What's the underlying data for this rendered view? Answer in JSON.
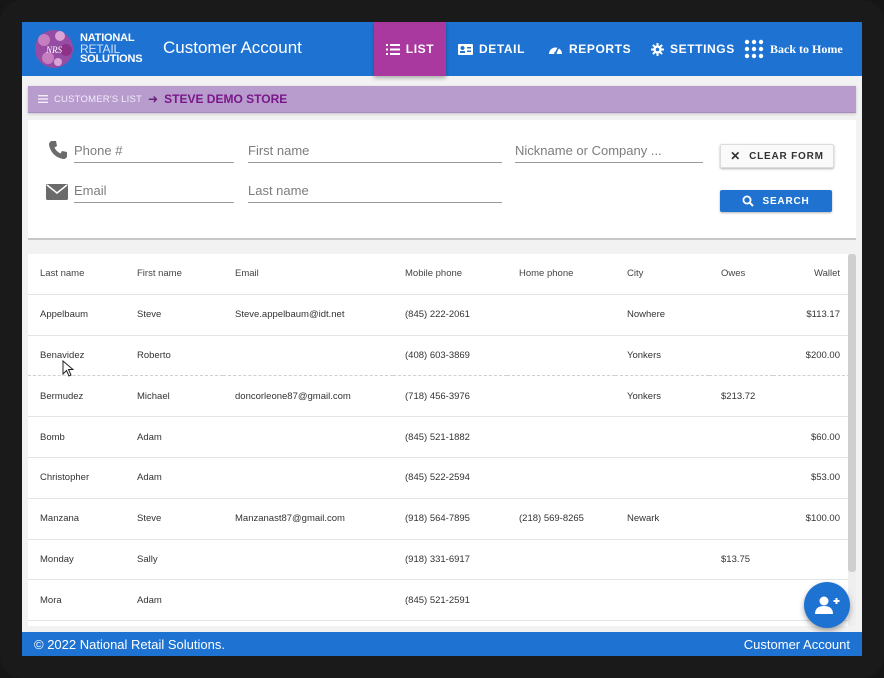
{
  "header": {
    "logo_line1": "NATIONAL",
    "logo_line2": "RETAIL",
    "logo_line3": "SOLUTIONS",
    "logo_badge": "NRS",
    "app_title": "Customer Account",
    "tabs": [
      {
        "label": "LIST",
        "icon": "list-icon",
        "active": true
      },
      {
        "label": "DETAIL",
        "icon": "id-card-icon",
        "active": false
      },
      {
        "label": "REPORTS",
        "icon": "speedometer-icon",
        "active": false
      },
      {
        "label": "SETTINGS",
        "icon": "gear-icon",
        "active": false
      }
    ],
    "back_home": "Back to Home"
  },
  "breadcrumb": {
    "parent": "CUSTOMER'S LIST",
    "current": "STEVE DEMO STORE"
  },
  "form": {
    "phone": {
      "placeholder": "Phone #",
      "value": ""
    },
    "first_name": {
      "placeholder": "First name",
      "value": ""
    },
    "nickname": {
      "placeholder": "Nickname or Company ...",
      "value": ""
    },
    "email": {
      "placeholder": "Email",
      "value": ""
    },
    "last_name": {
      "placeholder": "Last name",
      "value": ""
    },
    "clear_label": "CLEAR FORM",
    "search_label": "SEARCH"
  },
  "table": {
    "columns": [
      "Last name",
      "First name",
      "Email",
      "Mobile phone",
      "Home phone",
      "City",
      "Owes",
      "Wallet"
    ],
    "rows": [
      [
        "Appelbaum",
        "Steve",
        "Steve.appelbaum@idt.net",
        "(845) 222-2061",
        "",
        "Nowhere",
        "",
        "$113.17"
      ],
      [
        "Benavidez",
        "Roberto",
        "",
        "(408) 603-3869",
        "",
        "Yonkers",
        "",
        "$200.00"
      ],
      [
        "Bermudez",
        "Michael",
        "doncorleone87@gmail.com",
        "(718) 456-3976",
        "",
        "Yonkers",
        "$213.72",
        ""
      ],
      [
        "Bomb",
        "Adam",
        "",
        "(845) 521-1882",
        "",
        "",
        "",
        "$60.00"
      ],
      [
        "Christopher",
        "Adam",
        "",
        "(845) 522-2594",
        "",
        "",
        "",
        "$53.00"
      ],
      [
        "Manzana",
        "Steve",
        "Manzanast87@gmail.com",
        "(918) 564-7895",
        "(218) 569-8265",
        "Newark",
        "",
        "$100.00"
      ],
      [
        "Monday",
        "Sally",
        "",
        "(918) 331-6917",
        "",
        "",
        "$13.75",
        ""
      ],
      [
        "Mora",
        "Adam",
        "",
        "(845) 521-2591",
        "",
        "",
        "",
        ""
      ]
    ]
  },
  "footer": {
    "copyright": "© 2022 National Retail Solutions.",
    "right": "Customer Account"
  },
  "colors": {
    "primary": "#1e73d2",
    "active_tab": "#a9399e",
    "breadcrumb_bg": "#b79ccd",
    "breadcrumb_text": "#7a1789"
  }
}
